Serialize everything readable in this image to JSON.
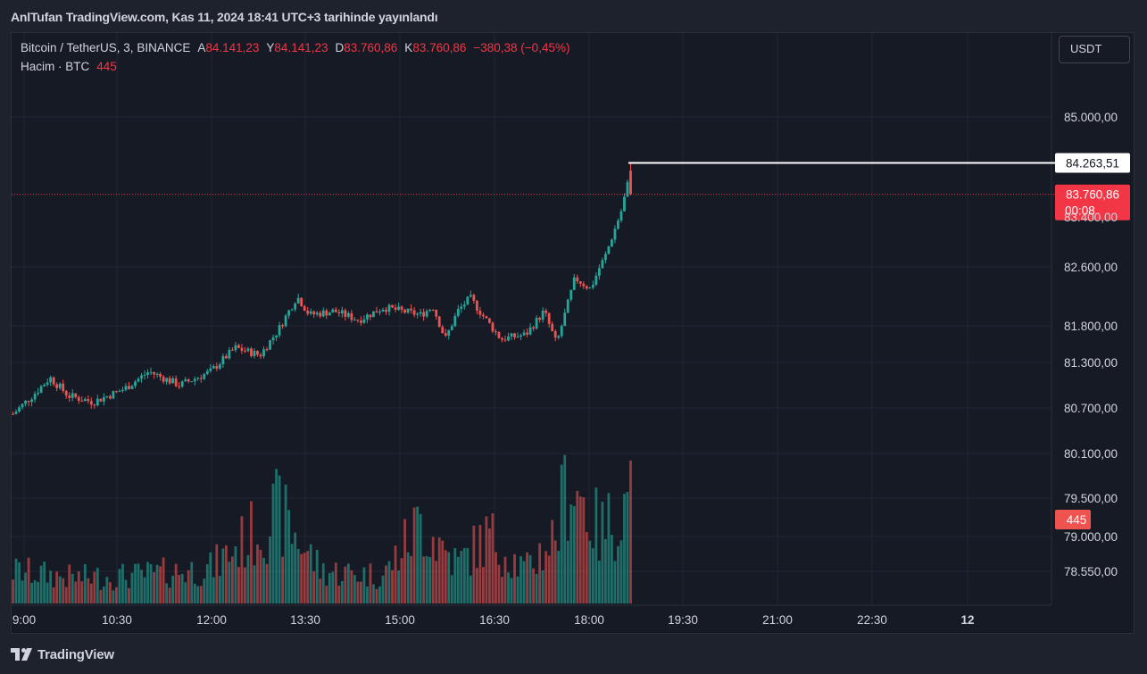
{
  "header": {
    "publisher": "AnlTufan TradingView.com, Kas 11, 2024 18:41 UTC+3 tarihinde yayınlandı"
  },
  "legend": {
    "symbol": "Bitcoin / TetherUS, 3, BINANCE",
    "open_label": "A",
    "open": "84.141,23",
    "high_label": "Y",
    "high": "84.141,23",
    "low_label": "D",
    "low": "83.760,86",
    "close_label": "K",
    "close": "83.760,86",
    "change": "−380,38 (−0,45%)",
    "volume_label": "Hacim · BTC",
    "volume_value": "445"
  },
  "currency": "USDT",
  "footer": {
    "brand": "TradingView"
  },
  "colors": {
    "up": "#26a69a",
    "down": "#ef5350",
    "background": "#161a25",
    "grid": "#232733",
    "text": "#d1d4dc"
  },
  "chart_data": {
    "type": "candlestick",
    "price_axis": {
      "ticks": [
        85000,
        82600,
        81800,
        81300,
        80700,
        80100,
        79500,
        79000,
        78550
      ],
      "tick_labels": [
        "85.000,00",
        "82.600,00",
        "81.800,00",
        "81.300,00",
        "80.700,00",
        "80.100,00",
        "79.500,00",
        "79.000,00",
        "78.550,00"
      ],
      "hidden_tick_label": "83.400,00"
    },
    "time_axis": {
      "labels": [
        "9:00",
        "10:30",
        "12:00",
        "13:30",
        "15:00",
        "16:30",
        "18:00",
        "19:30",
        "21:00",
        "22:30",
        "12"
      ]
    },
    "last_price": {
      "value": 83760.86,
      "label": "83.760,86",
      "countdown": "00:08"
    },
    "high_marker": {
      "value": 84263.51,
      "label": "84.263,51"
    },
    "last_volume": {
      "value": 445,
      "label": "445"
    },
    "series": [
      {
        "name": "Bitcoin / TetherUS",
        "keypoints": [
          {
            "t": 0,
            "p": 80620
          },
          {
            "t": 0.03,
            "p": 80850
          },
          {
            "t": 0.06,
            "p": 81100
          },
          {
            "t": 0.09,
            "p": 80860
          },
          {
            "t": 0.13,
            "p": 80780
          },
          {
            "t": 0.18,
            "p": 80950
          },
          {
            "t": 0.22,
            "p": 81180
          },
          {
            "t": 0.27,
            "p": 81000
          },
          {
            "t": 0.32,
            "p": 81180
          },
          {
            "t": 0.36,
            "p": 81500
          },
          {
            "t": 0.4,
            "p": 81400
          },
          {
            "t": 0.43,
            "p": 81750
          },
          {
            "t": 0.46,
            "p": 82200
          },
          {
            "t": 0.48,
            "p": 81950
          },
          {
            "t": 0.52,
            "p": 82000
          },
          {
            "t": 0.56,
            "p": 81880
          },
          {
            "t": 0.6,
            "p": 82050
          },
          {
            "t": 0.66,
            "p": 81950
          },
          {
            "t": 0.68,
            "p": 82060
          },
          {
            "t": 0.7,
            "p": 81620
          },
          {
            "t": 0.72,
            "p": 82000
          },
          {
            "t": 0.74,
            "p": 82180
          },
          {
            "t": 0.76,
            "p": 81950
          },
          {
            "t": 0.79,
            "p": 81620
          },
          {
            "t": 0.83,
            "p": 81680
          },
          {
            "t": 0.86,
            "p": 82000
          },
          {
            "t": 0.88,
            "p": 81550
          },
          {
            "t": 0.91,
            "p": 82450
          },
          {
            "t": 0.935,
            "p": 82300
          },
          {
            "t": 0.96,
            "p": 82800
          },
          {
            "t": 0.985,
            "p": 83500
          },
          {
            "t": 1.0,
            "p": 84141
          }
        ]
      }
    ],
    "volume_series": {
      "name": "Hacim",
      "unit": "BTC",
      "keypoints": [
        {
          "t": 0,
          "v": 140
        },
        {
          "t": 0.1,
          "v": 110
        },
        {
          "t": 0.2,
          "v": 120
        },
        {
          "t": 0.32,
          "v": 150
        },
        {
          "t": 0.43,
          "v": 390
        },
        {
          "t": 0.5,
          "v": 140
        },
        {
          "t": 0.6,
          "v": 120
        },
        {
          "t": 0.66,
          "v": 350
        },
        {
          "t": 0.72,
          "v": 170
        },
        {
          "t": 0.77,
          "v": 290
        },
        {
          "t": 0.83,
          "v": 140
        },
        {
          "t": 0.88,
          "v": 300
        },
        {
          "t": 0.9,
          "v": 560
        },
        {
          "t": 0.95,
          "v": 300
        },
        {
          "t": 1.0,
          "v": 445
        }
      ]
    }
  }
}
